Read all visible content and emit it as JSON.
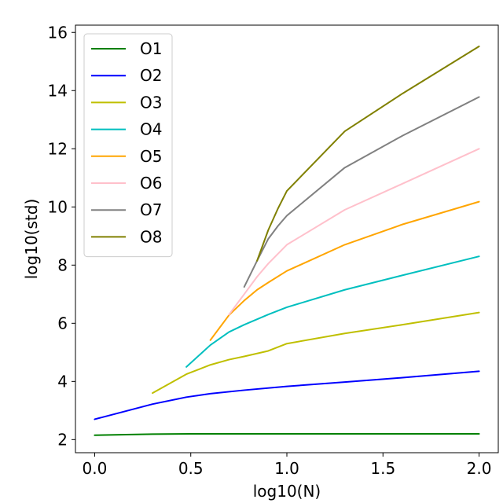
{
  "chart_data": {
    "type": "line",
    "title": "",
    "xlabel": "log10(N)",
    "ylabel": "log10(std)",
    "xlim": [
      -0.1,
      2.1
    ],
    "ylim": [
      1.55,
      16.25
    ],
    "xticks": [
      0.0,
      0.5,
      1.0,
      1.5,
      2.0
    ],
    "xtick_labels": [
      "0.0",
      "0.5",
      "1.0",
      "1.5",
      "2.0"
    ],
    "yticks": [
      2,
      4,
      6,
      8,
      10,
      12,
      14,
      16
    ],
    "ytick_labels": [
      "2",
      "4",
      "6",
      "8",
      "10",
      "12",
      "14",
      "16"
    ],
    "grid": false,
    "legend_position": "upper-left",
    "series": [
      {
        "name": "O1",
        "color": "#008000",
        "x": [
          0.0,
          0.3,
          0.5,
          0.75,
          1.0,
          1.25,
          1.5,
          1.75,
          2.0
        ],
        "y": [
          2.15,
          2.19,
          2.2,
          2.2,
          2.2,
          2.2,
          2.2,
          2.2,
          2.2
        ]
      },
      {
        "name": "O2",
        "color": "#0000ff",
        "x": [
          0.0,
          0.301,
          0.477,
          0.602,
          0.778,
          1.0,
          1.301,
          1.602,
          2.0
        ],
        "y": [
          2.7,
          3.22,
          3.46,
          3.58,
          3.7,
          3.83,
          3.98,
          4.13,
          4.35
        ]
      },
      {
        "name": "O3",
        "color": "#bfbf00",
        "x": [
          0.301,
          0.477,
          0.602,
          0.699,
          0.778,
          0.903,
          1.0,
          1.301,
          1.602,
          2.0
        ],
        "y": [
          3.6,
          4.25,
          4.57,
          4.75,
          4.86,
          5.05,
          5.3,
          5.65,
          5.95,
          6.37
        ]
      },
      {
        "name": "O4",
        "color": "#00bfbf",
        "x": [
          0.477,
          0.602,
          0.699,
          0.778,
          0.903,
          1.0,
          1.301,
          1.602,
          2.0
        ],
        "y": [
          4.5,
          5.25,
          5.7,
          5.95,
          6.3,
          6.55,
          7.15,
          7.65,
          8.3
        ]
      },
      {
        "name": "O5",
        "color": "#ffa500",
        "x": [
          0.602,
          0.699,
          0.778,
          0.845,
          0.903,
          1.0,
          1.301,
          1.602,
          2.0
        ],
        "y": [
          5.42,
          6.28,
          6.78,
          7.15,
          7.4,
          7.8,
          8.7,
          9.4,
          10.18
        ]
      },
      {
        "name": "O6",
        "color": "#ffc0cb",
        "x": [
          0.699,
          0.778,
          0.845,
          0.903,
          1.0,
          1.301,
          1.602,
          2.0
        ],
        "y": [
          6.3,
          7.0,
          7.6,
          8.05,
          8.7,
          9.9,
          10.8,
          12.0
        ]
      },
      {
        "name": "O7",
        "color": "#808080",
        "x": [
          0.778,
          0.845,
          0.903,
          0.954,
          1.0,
          1.301,
          1.602,
          2.0
        ],
        "y": [
          7.25,
          8.15,
          8.9,
          9.35,
          9.7,
          11.35,
          12.45,
          13.78
        ]
      },
      {
        "name": "O8",
        "color": "#808000",
        "x": [
          0.845,
          0.903,
          0.954,
          1.0,
          1.301,
          1.602,
          2.0
        ],
        "y": [
          8.15,
          9.2,
          9.95,
          10.55,
          12.6,
          13.9,
          15.52
        ]
      }
    ]
  }
}
